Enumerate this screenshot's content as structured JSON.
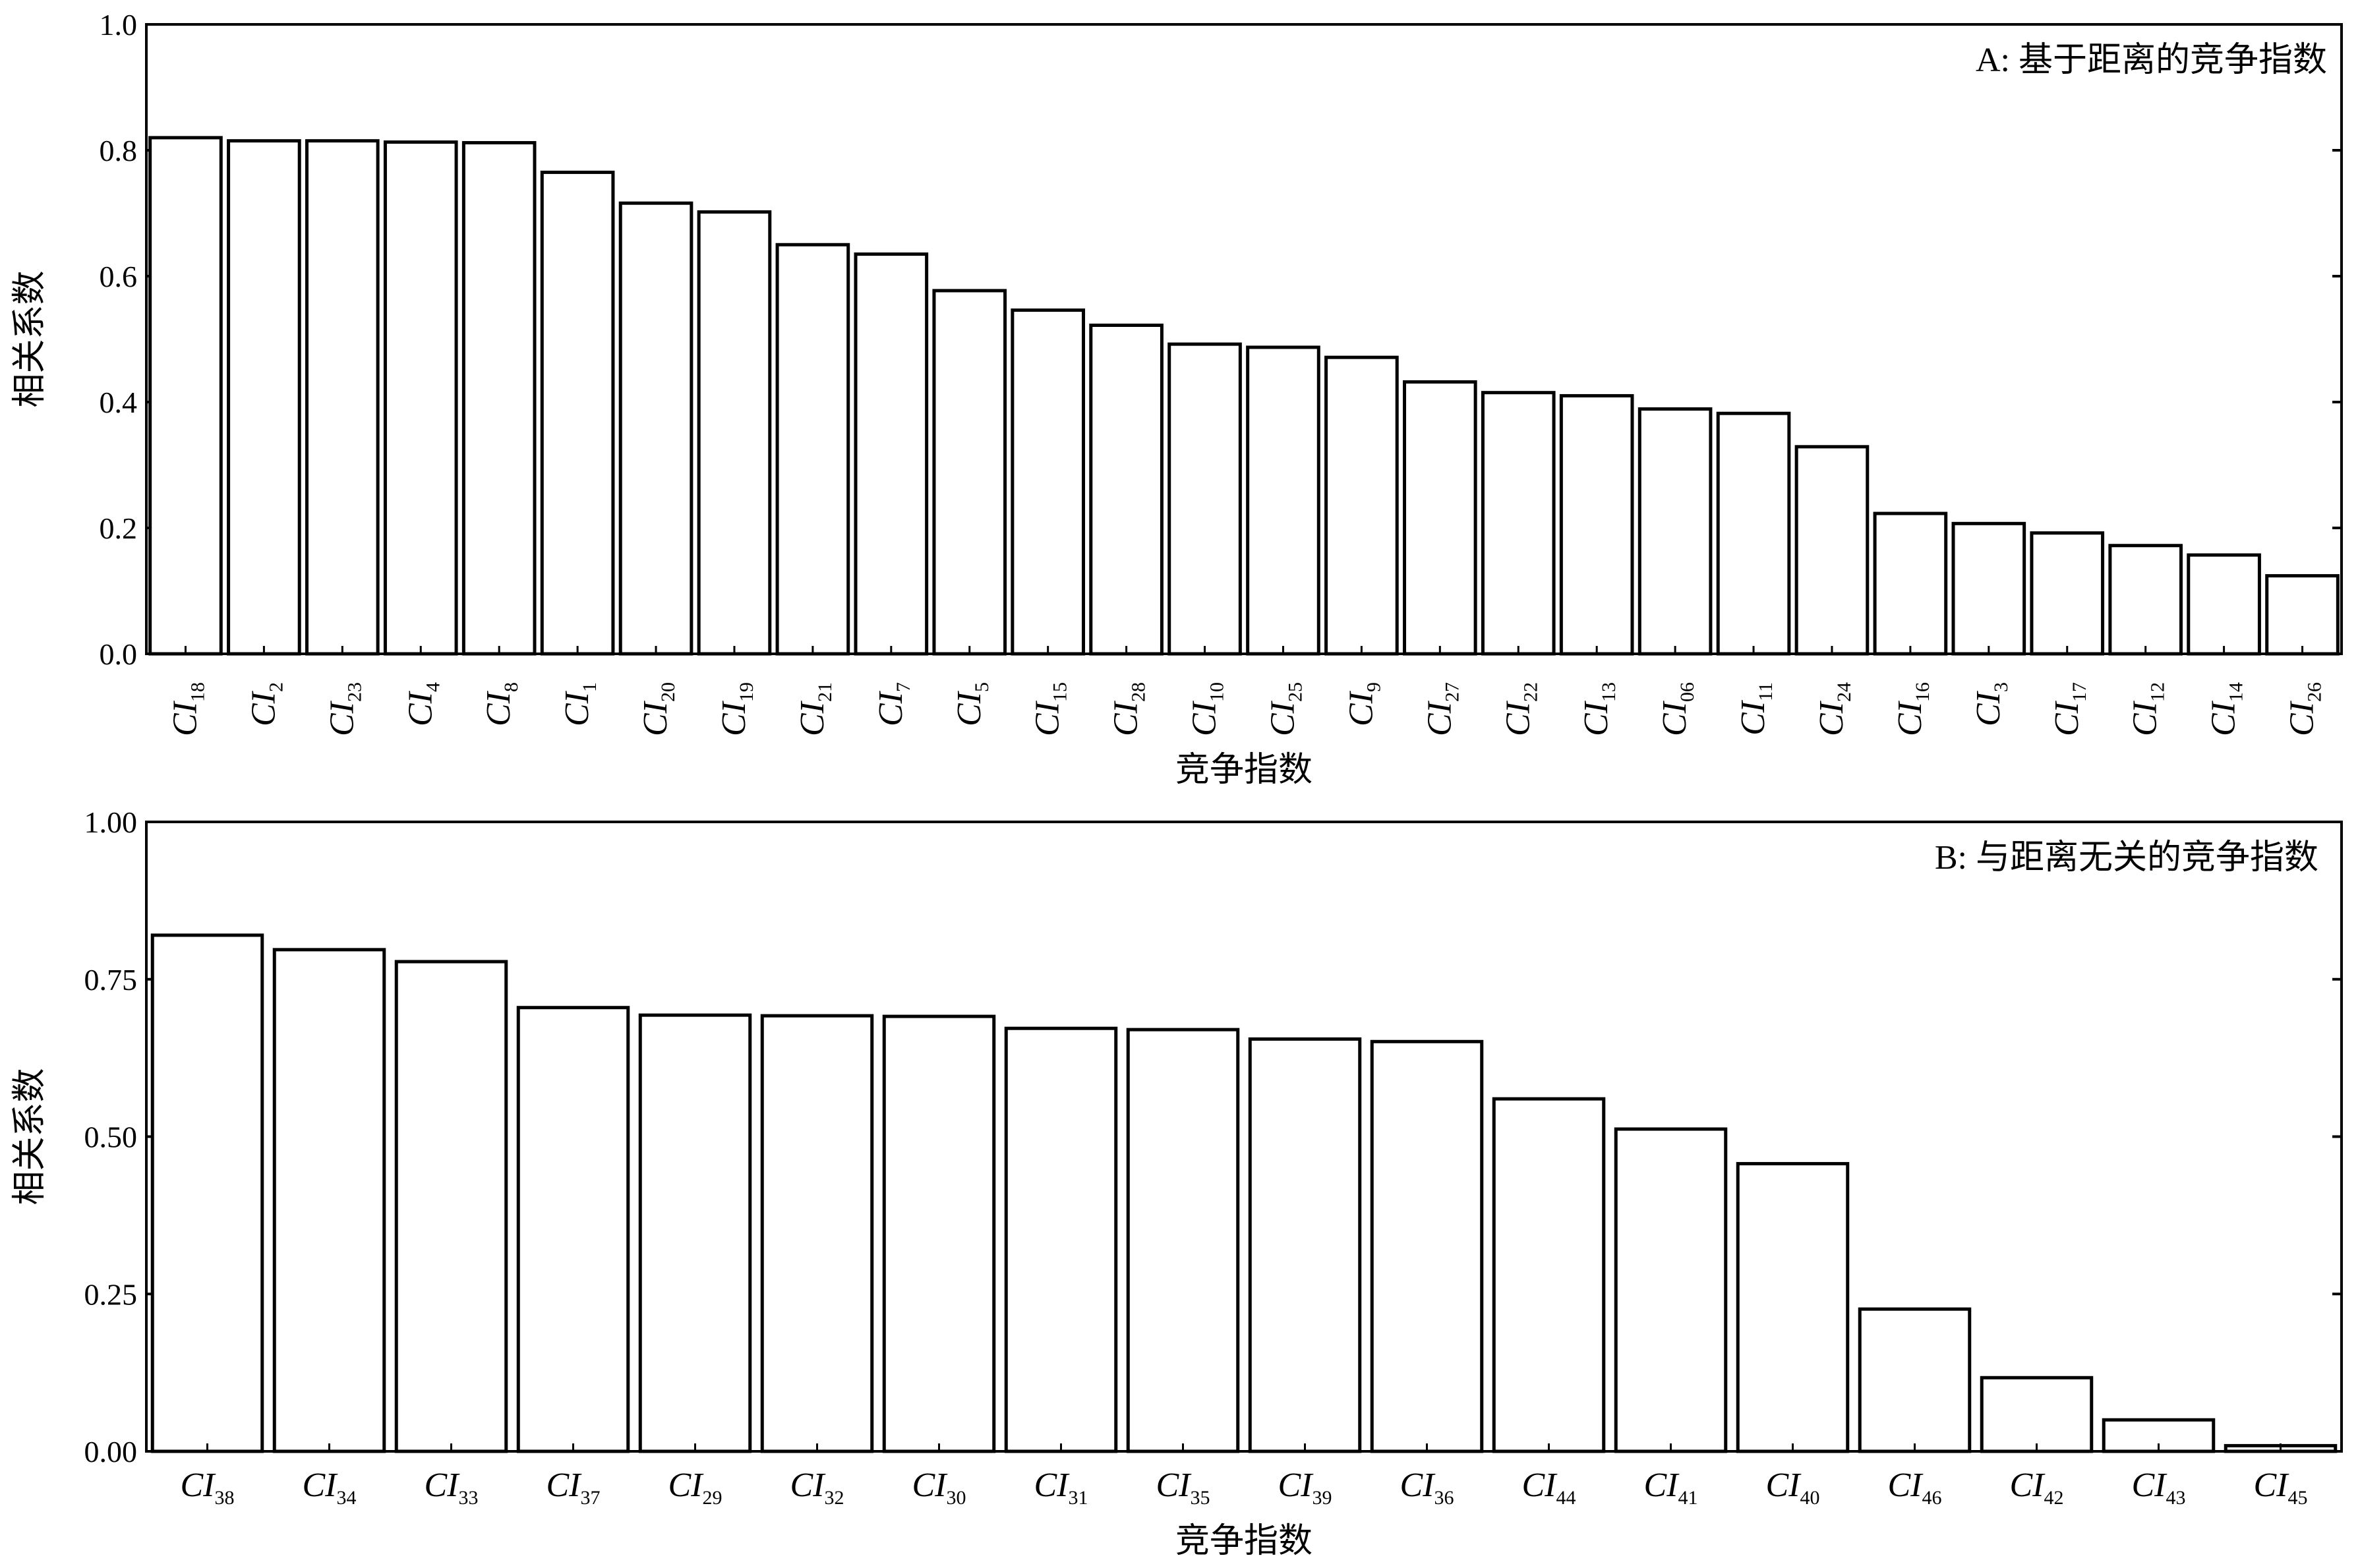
{
  "chart_data": [
    {
      "type": "bar",
      "title": "A: 基于距离的竞争指数",
      "xlabel": "竞争指数",
      "ylabel": "相关系数",
      "ylim": [
        0,
        1.0
      ],
      "yticks": [
        "0.0",
        "0.2",
        "0.4",
        "0.6",
        "0.8",
        "1.0"
      ],
      "grid": false,
      "categories": [
        {
          "main": "CI",
          "sub": "18"
        },
        {
          "main": "CI",
          "sub": "2"
        },
        {
          "main": "CI",
          "sub": "23"
        },
        {
          "main": "CI",
          "sub": "4"
        },
        {
          "main": "CI",
          "sub": "8"
        },
        {
          "main": "CI",
          "sub": "1"
        },
        {
          "main": "CI",
          "sub": "20"
        },
        {
          "main": "CI",
          "sub": "19"
        },
        {
          "main": "CI",
          "sub": "21"
        },
        {
          "main": "CI",
          "sub": "7"
        },
        {
          "main": "CI",
          "sub": "5"
        },
        {
          "main": "CI",
          "sub": "15"
        },
        {
          "main": "CI",
          "sub": "28"
        },
        {
          "main": "CI",
          "sub": "10"
        },
        {
          "main": "CI",
          "sub": "25"
        },
        {
          "main": "CI",
          "sub": "9"
        },
        {
          "main": "CI",
          "sub": "27"
        },
        {
          "main": "CI",
          "sub": "22"
        },
        {
          "main": "CI",
          "sub": "13"
        },
        {
          "main": "CI",
          "sub": "06"
        },
        {
          "main": "CI",
          "sub": "11"
        },
        {
          "main": "CI",
          "sub": "24"
        },
        {
          "main": "CI",
          "sub": "16"
        },
        {
          "main": "CI",
          "sub": "3"
        },
        {
          "main": "CI",
          "sub": "17"
        },
        {
          "main": "CI",
          "sub": "12"
        },
        {
          "main": "CI",
          "sub": "14"
        },
        {
          "main": "CI",
          "sub": "26"
        }
      ],
      "values": [
        0.82,
        0.815,
        0.815,
        0.813,
        0.812,
        0.765,
        0.716,
        0.702,
        0.65,
        0.635,
        0.577,
        0.546,
        0.522,
        0.492,
        0.487,
        0.471,
        0.432,
        0.415,
        0.41,
        0.389,
        0.382,
        0.329,
        0.223,
        0.207,
        0.192,
        0.172,
        0.157,
        0.124
      ]
    },
    {
      "type": "bar",
      "title": "B: 与距离无关的竞争指数",
      "xlabel": "竞争指数",
      "ylabel": "相关系数",
      "ylim": [
        0,
        1.0
      ],
      "yticks": [
        "0.00",
        "0.25",
        "0.50",
        "0.75",
        "1.00"
      ],
      "grid": false,
      "categories": [
        {
          "main": "CI",
          "sub": "38"
        },
        {
          "main": "CI",
          "sub": "34"
        },
        {
          "main": "CI",
          "sub": "33"
        },
        {
          "main": "CI",
          "sub": "37"
        },
        {
          "main": "CI",
          "sub": "29"
        },
        {
          "main": "CI",
          "sub": "32"
        },
        {
          "main": "CI",
          "sub": "30"
        },
        {
          "main": "CI",
          "sub": "31"
        },
        {
          "main": "CI",
          "sub": "35"
        },
        {
          "main": "CI",
          "sub": "39"
        },
        {
          "main": "CI",
          "sub": "36"
        },
        {
          "main": "CI",
          "sub": "44"
        },
        {
          "main": "CI",
          "sub": "41"
        },
        {
          "main": "CI",
          "sub": "40"
        },
        {
          "main": "CI",
          "sub": "46"
        },
        {
          "main": "CI",
          "sub": "42"
        },
        {
          "main": "CI",
          "sub": "43"
        },
        {
          "main": "CI",
          "sub": "45"
        }
      ],
      "values": [
        0.82,
        0.797,
        0.778,
        0.705,
        0.693,
        0.692,
        0.691,
        0.672,
        0.67,
        0.655,
        0.651,
        0.56,
        0.512,
        0.457,
        0.226,
        0.117,
        0.05,
        0.009
      ]
    }
  ]
}
